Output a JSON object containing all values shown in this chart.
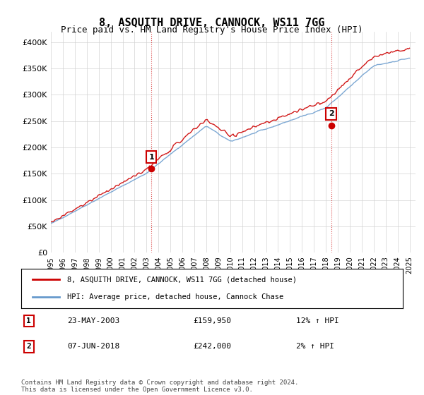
{
  "title": "8, ASQUITH DRIVE, CANNOCK, WS11 7GG",
  "subtitle": "Price paid vs. HM Land Registry's House Price Index (HPI)",
  "legend_line1": "8, ASQUITH DRIVE, CANNOCK, WS11 7GG (detached house)",
  "legend_line2": "HPI: Average price, detached house, Cannock Chase",
  "annotation1_label": "1",
  "annotation1_date": "23-MAY-2003",
  "annotation1_price": "£159,950",
  "annotation1_hpi": "12% ↑ HPI",
  "annotation1_year": 2003.4,
  "annotation1_value": 159950,
  "annotation2_label": "2",
  "annotation2_date": "07-JUN-2018",
  "annotation2_price": "£242,000",
  "annotation2_hpi": "2% ↑ HPI",
  "annotation2_year": 2018.44,
  "annotation2_value": 242000,
  "footer": "Contains HM Land Registry data © Crown copyright and database right 2024.\nThis data is licensed under the Open Government Licence v3.0.",
  "red_color": "#cc0000",
  "blue_color": "#6699cc",
  "ylim": [
    0,
    420000
  ],
  "yticks": [
    0,
    50000,
    100000,
    150000,
    200000,
    250000,
    300000,
    350000,
    400000
  ],
  "xmin": 1995,
  "xmax": 2025.5
}
